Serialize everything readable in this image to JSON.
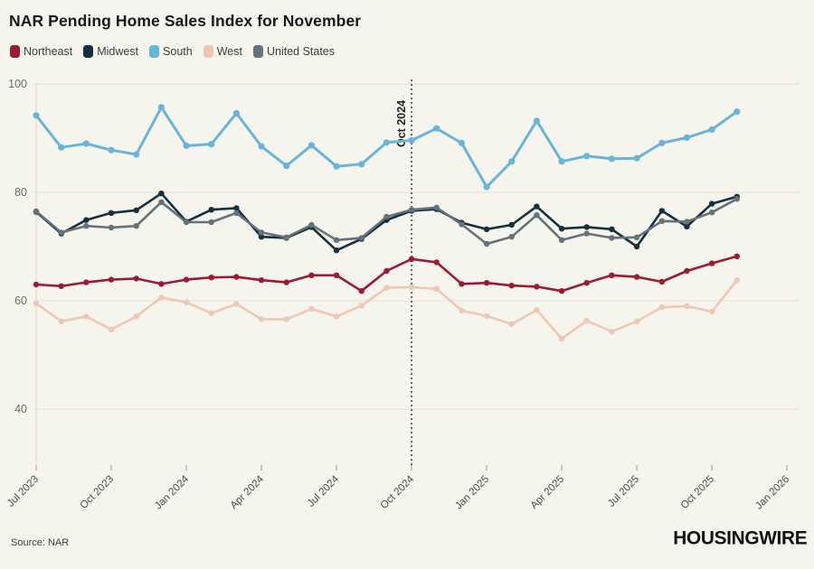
{
  "header": {
    "title": "NAR Pending Home Sales Index for November"
  },
  "legend": [
    {
      "label": "Northeast",
      "color": "#9c1b32"
    },
    {
      "label": "Midwest",
      "color": "#14303e"
    },
    {
      "label": "South",
      "color": "#69b5da"
    },
    {
      "label": "West",
      "color": "#efc7b3"
    },
    {
      "label": "United States",
      "color": "#64727a"
    }
  ],
  "chart_data": {
    "type": "line",
    "title": "NAR Pending Home Sales Index for November",
    "x": [
      "Jul 2023",
      "Aug 2023",
      "Sep 2023",
      "Oct 2023",
      "Nov 2023",
      "Dec 2023",
      "Jan 2024",
      "Feb 2024",
      "Mar 2024",
      "Apr 2024",
      "May 2024",
      "Jun 2024",
      "Jul 2024",
      "Aug 2024",
      "Sep 2024",
      "Oct 2024",
      "Nov 2024",
      "Dec 2024",
      "Jan 2025",
      "Feb 2025",
      "Mar 2025",
      "Apr 2025",
      "May 2025",
      "Jun 2025",
      "Jul 2025",
      "Aug 2025",
      "Sep 2025",
      "Oct 2025",
      "Nov 2025"
    ],
    "x_tick_labels": [
      "Jul 2023",
      "Oct 2023",
      "Jan 2024",
      "Apr 2024",
      "Jul 2024",
      "Oct 2024",
      "Jan 2025",
      "Apr 2025",
      "Jul 2025",
      "Oct 2025",
      "Jan 2026"
    ],
    "y_ticks": [
      100,
      80,
      60,
      40
    ],
    "ylim": [
      40,
      100
    ],
    "grid": true,
    "legend_position": "top-left",
    "annotation": {
      "label": "Oct 2024",
      "x": "Oct 2024"
    },
    "series": [
      {
        "name": "South",
        "color": "#69b5da",
        "values": [
          94.2,
          88.3,
          89.0,
          87.8,
          87.0,
          95.7,
          88.6,
          88.9,
          94.6,
          88.5,
          84.9,
          88.7,
          84.8,
          85.2,
          89.2,
          89.6,
          91.8,
          89.1,
          81.0,
          85.7,
          93.2,
          85.7,
          86.7,
          86.2,
          86.3,
          89.1,
          90.1,
          91.6,
          94.9
        ]
      },
      {
        "name": "West",
        "color": "#efc7b3",
        "values": [
          59.5,
          56.2,
          57.1,
          54.7,
          57.1,
          60.6,
          59.7,
          57.7,
          59.4,
          56.6,
          56.6,
          58.5,
          57.1,
          59.1,
          62.4,
          62.5,
          62.2,
          58.2,
          57.2,
          55.7,
          58.3,
          53.0,
          56.3,
          54.3,
          56.2,
          58.8,
          59.0,
          58.0,
          63.8
        ]
      },
      {
        "name": "Northeast",
        "color": "#9c1b32",
        "values": [
          63.0,
          62.7,
          63.4,
          63.9,
          64.1,
          63.1,
          63.9,
          64.3,
          64.4,
          63.8,
          63.4,
          64.7,
          64.7,
          61.8,
          65.5,
          67.7,
          67.1,
          63.1,
          63.3,
          62.8,
          62.6,
          61.8,
          63.3,
          64.7,
          64.4,
          63.5,
          65.5,
          66.9,
          68.2
        ]
      },
      {
        "name": "Midwest",
        "color": "#14303e",
        "values": [
          76.4,
          72.4,
          74.9,
          76.2,
          76.7,
          79.8,
          74.6,
          76.8,
          77.1,
          71.8,
          71.6,
          73.6,
          69.3,
          71.4,
          74.9,
          76.6,
          76.9,
          74.4,
          73.2,
          74.0,
          77.4,
          73.3,
          73.6,
          73.2,
          70.0,
          76.6,
          73.7,
          77.9,
          79.2
        ]
      },
      {
        "name": "United States",
        "color": "#64727a",
        "values": [
          76.5,
          72.6,
          73.8,
          73.5,
          73.8,
          78.2,
          74.5,
          74.5,
          76.2,
          72.6,
          71.7,
          74.0,
          71.2,
          71.6,
          75.5,
          76.8,
          77.2,
          74.1,
          70.5,
          71.8,
          75.8,
          71.2,
          72.4,
          71.6,
          71.7,
          74.7,
          74.6,
          76.3,
          78.8
        ]
      }
    ]
  },
  "footer": {
    "source": "Source: NAR",
    "logo": "HOUSINGWIRE"
  }
}
